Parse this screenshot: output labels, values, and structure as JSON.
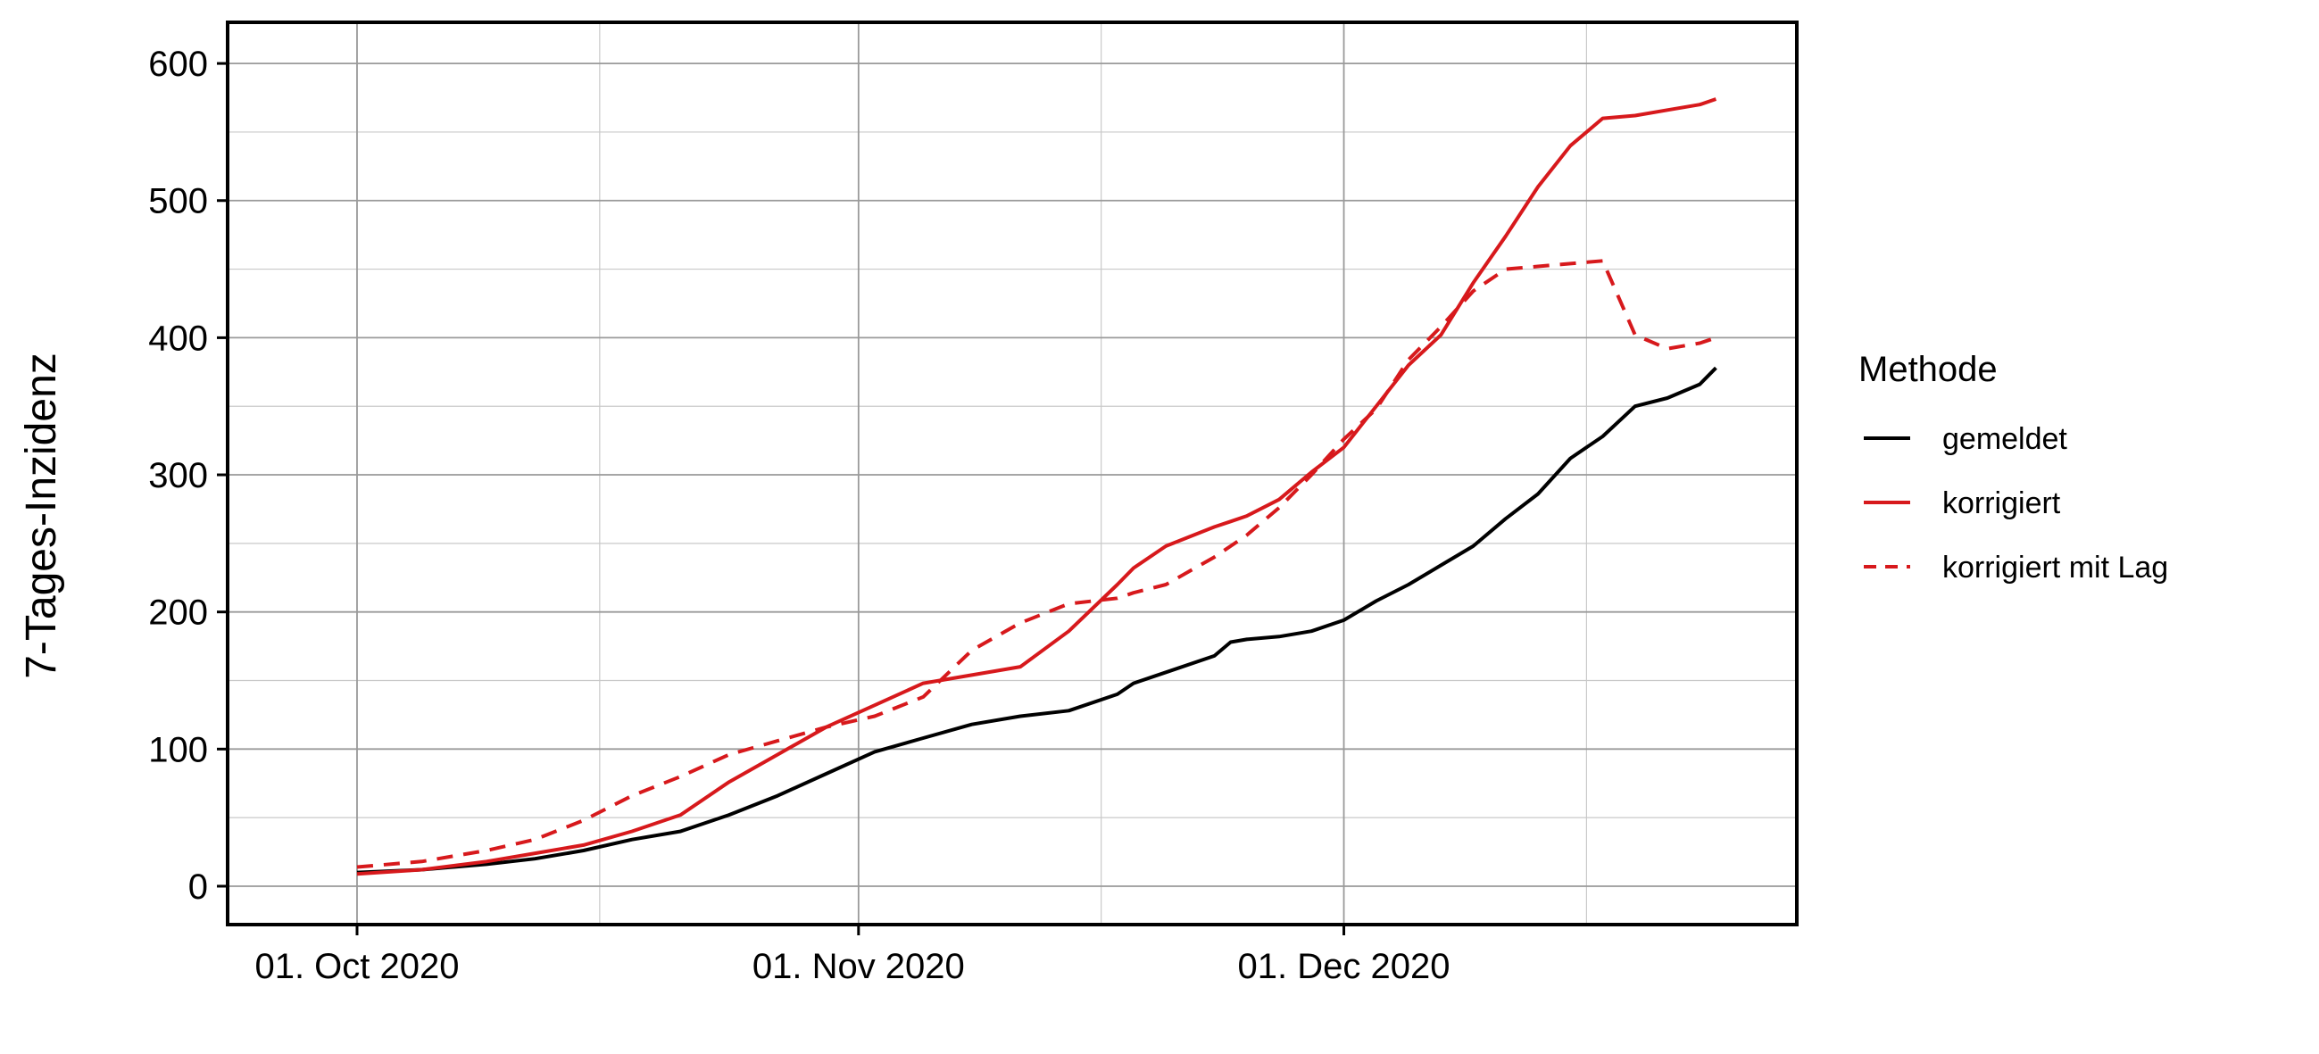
{
  "chart_data": {
    "type": "line",
    "ylabel": "7-Tages-Inzidenz",
    "xlabel": "",
    "ylim": [
      -28,
      630
    ],
    "xlim": [
      "2020-09-23",
      "2020-12-29"
    ],
    "y_ticks": [
      0,
      100,
      200,
      300,
      400,
      500,
      600
    ],
    "x_ticks": [
      {
        "date": "2020-10-01",
        "label": "01. Oct 2020"
      },
      {
        "date": "2020-11-01",
        "label": "01. Nov 2020"
      },
      {
        "date": "2020-12-01",
        "label": "01. Dec 2020"
      }
    ],
    "grid": true,
    "legend": {
      "title": "Methode",
      "position": "right"
    },
    "series": [
      {
        "name": "gemeldet",
        "color": "#000000",
        "dash": "solid",
        "x": [
          "2020-10-01",
          "2020-10-05",
          "2020-10-09",
          "2020-10-12",
          "2020-10-15",
          "2020-10-18",
          "2020-10-21",
          "2020-10-24",
          "2020-10-27",
          "2020-10-30",
          "2020-11-02",
          "2020-11-05",
          "2020-11-08",
          "2020-11-11",
          "2020-11-14",
          "2020-11-17",
          "2020-11-18",
          "2020-11-20",
          "2020-11-23",
          "2020-11-24",
          "2020-11-25",
          "2020-11-27",
          "2020-11-29",
          "2020-12-01",
          "2020-12-03",
          "2020-12-05",
          "2020-12-07",
          "2020-12-09",
          "2020-12-11",
          "2020-12-13",
          "2020-12-15",
          "2020-12-17",
          "2020-12-19",
          "2020-12-21",
          "2020-12-23",
          "2020-12-24"
        ],
        "y": [
          10,
          12,
          16,
          20,
          26,
          34,
          40,
          52,
          66,
          82,
          98,
          108,
          118,
          124,
          128,
          140,
          148,
          156,
          168,
          178,
          180,
          182,
          186,
          194,
          208,
          220,
          234,
          248,
          268,
          286,
          312,
          328,
          350,
          356,
          366,
          378
        ]
      },
      {
        "name": "korrigiert",
        "color": "#d7191c",
        "dash": "solid",
        "x": [
          "2020-10-01",
          "2020-10-05",
          "2020-10-09",
          "2020-10-12",
          "2020-10-15",
          "2020-10-18",
          "2020-10-21",
          "2020-10-24",
          "2020-10-27",
          "2020-10-30",
          "2020-11-02",
          "2020-11-05",
          "2020-11-08",
          "2020-11-11",
          "2020-11-14",
          "2020-11-17",
          "2020-11-18",
          "2020-11-20",
          "2020-11-23",
          "2020-11-24",
          "2020-11-25",
          "2020-11-27",
          "2020-11-29",
          "2020-12-01",
          "2020-12-03",
          "2020-12-05",
          "2020-12-07",
          "2020-12-09",
          "2020-12-11",
          "2020-12-13",
          "2020-12-15",
          "2020-12-17",
          "2020-12-19",
          "2020-12-21",
          "2020-12-23",
          "2020-12-24"
        ],
        "y": [
          9,
          12,
          18,
          24,
          30,
          40,
          52,
          76,
          96,
          116,
          132,
          148,
          154,
          160,
          186,
          220,
          232,
          248,
          262,
          266,
          270,
          282,
          302,
          320,
          350,
          380,
          402,
          440,
          474,
          510,
          540,
          560,
          562,
          566,
          570,
          574
        ]
      },
      {
        "name": "korrigiert mit Lag",
        "color": "#d7191c",
        "dash": "dashed",
        "x": [
          "2020-10-01",
          "2020-10-05",
          "2020-10-09",
          "2020-10-12",
          "2020-10-15",
          "2020-10-18",
          "2020-10-21",
          "2020-10-24",
          "2020-10-27",
          "2020-10-30",
          "2020-11-02",
          "2020-11-05",
          "2020-11-08",
          "2020-11-11",
          "2020-11-14",
          "2020-11-17",
          "2020-11-18",
          "2020-11-20",
          "2020-11-23",
          "2020-11-24",
          "2020-11-25",
          "2020-11-27",
          "2020-11-29",
          "2020-12-01",
          "2020-12-03",
          "2020-12-05",
          "2020-12-07",
          "2020-12-09",
          "2020-12-11",
          "2020-12-13",
          "2020-12-15",
          "2020-12-17",
          "2020-12-19",
          "2020-12-21",
          "2020-12-23",
          "2020-12-24"
        ],
        "y": [
          14,
          18,
          26,
          34,
          48,
          66,
          80,
          96,
          106,
          116,
          124,
          138,
          172,
          192,
          206,
          210,
          214,
          220,
          240,
          248,
          256,
          276,
          300,
          326,
          348,
          384,
          408,
          434,
          450,
          452,
          454,
          456,
          402,
          392,
          396,
          400
        ]
      }
    ]
  }
}
